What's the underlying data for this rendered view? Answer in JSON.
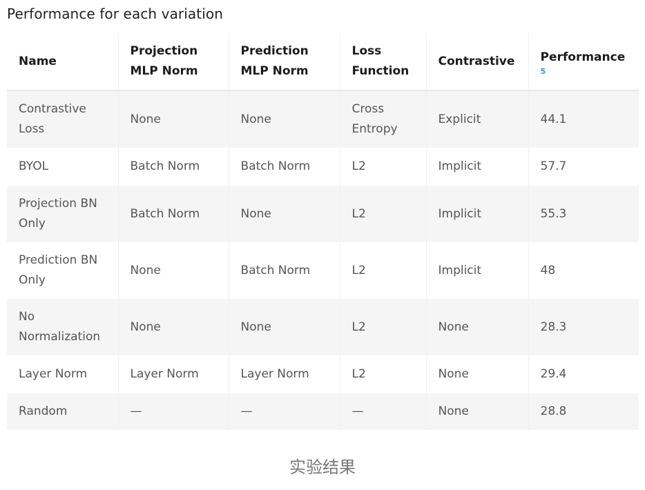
{
  "title": "Performance for each variation",
  "headers": {
    "name": "Name",
    "projection": "Projection MLP Norm",
    "prediction": "Prediction MLP Norm",
    "loss": "Loss Function",
    "contrastive": "Contrastive",
    "performance": "Performance",
    "performance_footnote": "5"
  },
  "rows": [
    {
      "name": "Contrastive Loss",
      "projection": "None",
      "prediction": "None",
      "loss": "Cross Entropy",
      "contrastive": "Explicit",
      "performance": "44.1"
    },
    {
      "name": "BYOL",
      "projection": "Batch Norm",
      "prediction": "Batch Norm",
      "loss": "L2",
      "contrastive": "Implicit",
      "performance": "57.7"
    },
    {
      "name": "Projection BN Only",
      "projection": "Batch Norm",
      "prediction": "None",
      "loss": "L2",
      "contrastive": "Implicit",
      "performance": "55.3"
    },
    {
      "name": "Prediction BN Only",
      "projection": "None",
      "prediction": "Batch Norm",
      "loss": "L2",
      "contrastive": "Implicit",
      "performance": "48"
    },
    {
      "name": "No Normalization",
      "projection": "None",
      "prediction": "None",
      "loss": "L2",
      "contrastive": "None",
      "performance": "28.3"
    },
    {
      "name": "Layer Norm",
      "projection": "Layer Norm",
      "prediction": "Layer Norm",
      "loss": "L2",
      "contrastive": "None",
      "performance": "29.4"
    },
    {
      "name": "Random",
      "projection": "—",
      "prediction": "—",
      "loss": "—",
      "contrastive": "None",
      "performance": "28.8"
    }
  ],
  "caption": "实验结果",
  "colors": {
    "footnote": "#2a9bd4",
    "row_stripe": "#f5f5f5",
    "header_text": "#1c1c1c",
    "cell_text": "#555555"
  }
}
